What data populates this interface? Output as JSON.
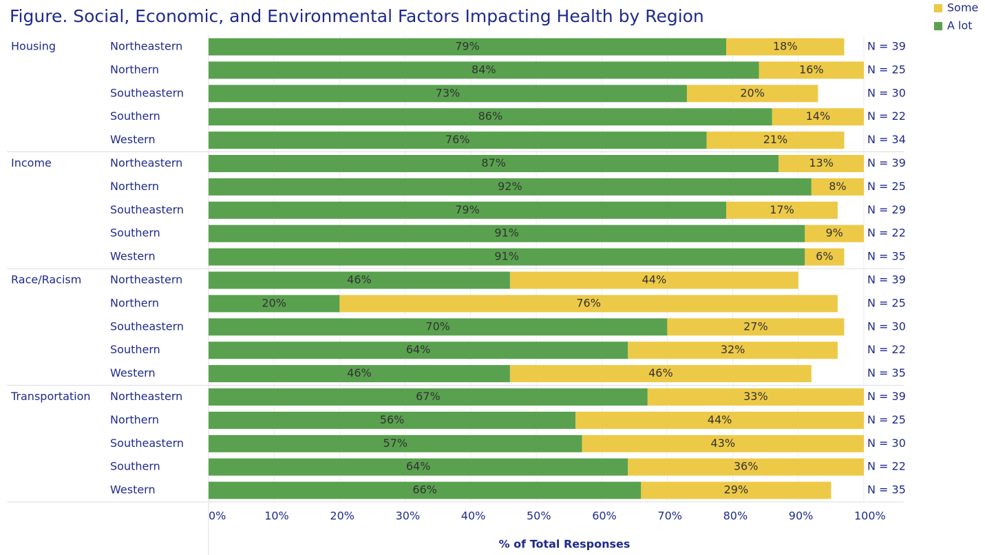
{
  "chart_data": {
    "type": "stacked-bar-horizontal",
    "title": "Figure. Social, Economic, and Environmental Factors Impacting Health by Region",
    "x_label": "% of Total Responses",
    "category_groups": [
      "Housing",
      null,
      null,
      null,
      null,
      "Income",
      null,
      null,
      null,
      null,
      "Race/Racism",
      null,
      null,
      null,
      null,
      "Transportation",
      null,
      null,
      null,
      null
    ],
    "categories": [
      "Northeastern",
      "Northern",
      "Southeastern",
      "Southern",
      "Western",
      "Northeastern",
      "Northern",
      "Southeastern",
      "Southern",
      "Western",
      "Northeastern",
      "Northern",
      "Southeastern",
      "Southern",
      "Western",
      "Northeastern",
      "Northern",
      "Southeastern",
      "Southern",
      "Western"
    ],
    "series": [
      {
        "name": "A lot",
        "color": "#59a14f",
        "values": [
          79,
          84,
          73,
          86,
          76,
          87,
          92,
          79,
          91,
          91,
          46,
          20,
          70,
          64,
          46,
          67,
          56,
          57,
          64,
          66
        ],
        "value_labels": [
          "79%",
          "84%",
          "73%",
          "86%",
          "76%",
          "87%",
          "92%",
          "79%",
          "91%",
          "91%",
          "46%",
          "20%",
          "70%",
          "64%",
          "46%",
          "67%",
          "56%",
          "57%",
          "64%",
          "66%"
        ]
      },
      {
        "name": "Some",
        "color": "#edc948",
        "values": [
          18,
          16,
          20,
          14,
          21,
          13,
          8,
          17,
          9,
          6,
          44,
          76,
          27,
          32,
          46,
          33,
          44,
          43,
          36,
          29
        ],
        "value_labels": [
          "18%",
          "16%",
          "20%",
          "14%",
          "21%",
          "13%",
          "8%",
          "17%",
          "9%",
          "6%",
          "44%",
          "76%",
          "27%",
          "32%",
          "46%",
          "33%",
          "44%",
          "43%",
          "36%",
          "29%"
        ]
      }
    ],
    "n_labels": [
      "N = 39",
      "N = 25",
      "N = 30",
      "N = 22",
      "N = 34",
      "N = 39",
      "N = 25",
      "N = 29",
      "N = 22",
      "N = 35",
      "N = 39",
      "N = 25",
      "N = 30",
      "N = 22",
      "N = 35",
      "N = 39",
      "N = 25",
      "N = 30",
      "N = 22",
      "N = 35"
    ],
    "xlim": [
      0,
      100
    ],
    "xticks": [
      {
        "value": 0,
        "label": "0%"
      },
      {
        "value": 10,
        "label": "10%"
      },
      {
        "value": 20,
        "label": "20%"
      },
      {
        "value": 30,
        "label": "30%"
      },
      {
        "value": 40,
        "label": "40%"
      },
      {
        "value": 50,
        "label": "50%"
      },
      {
        "value": 60,
        "label": "60%"
      },
      {
        "value": 70,
        "label": "70%"
      },
      {
        "value": 80,
        "label": "80%"
      },
      {
        "value": 90,
        "label": "90%"
      },
      {
        "value": 100,
        "label": "100%"
      }
    ],
    "grid": true,
    "legend": "top-right"
  }
}
